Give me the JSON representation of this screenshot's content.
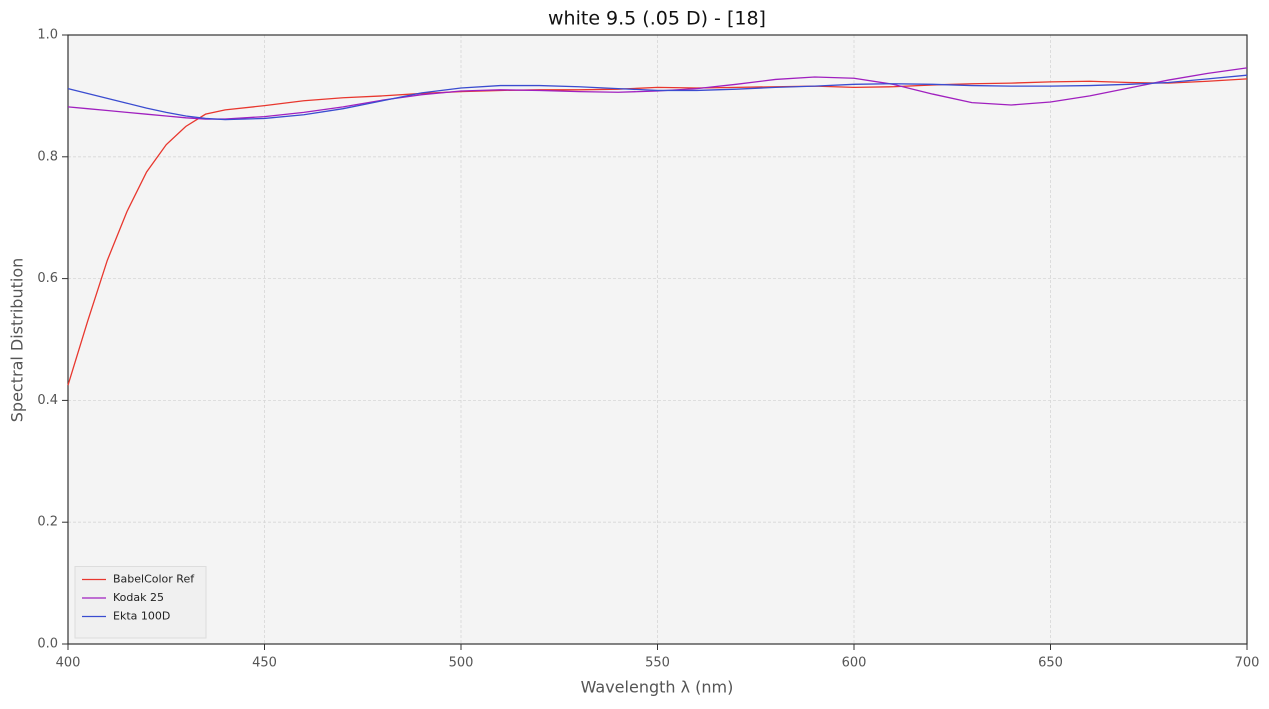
{
  "chart_data": {
    "type": "line",
    "title": "white 9.5 (.05 D) - [18]",
    "xlabel": "Wavelength λ (nm)",
    "ylabel": "Spectral Distribution",
    "x": [
      400,
      405,
      410,
      415,
      420,
      425,
      430,
      435,
      440,
      450,
      460,
      470,
      480,
      490,
      500,
      510,
      520,
      530,
      540,
      550,
      560,
      570,
      580,
      590,
      600,
      610,
      620,
      630,
      640,
      650,
      660,
      670,
      680,
      690,
      700
    ],
    "series": [
      {
        "name": "BabelColor Ref",
        "color": "#e8372e",
        "values": [
          0.425,
          0.53,
          0.63,
          0.71,
          0.775,
          0.82,
          0.85,
          0.87,
          0.877,
          0.884,
          0.892,
          0.897,
          0.9,
          0.904,
          0.907,
          0.909,
          0.91,
          0.91,
          0.911,
          0.914,
          0.913,
          0.914,
          0.915,
          0.916,
          0.914,
          0.915,
          0.918,
          0.92,
          0.921,
          0.923,
          0.924,
          0.922,
          0.921,
          0.924,
          0.928
        ]
      },
      {
        "name": "Kodak 25",
        "color": "#a020bf",
        "values": [
          0.882,
          0.879,
          0.876,
          0.873,
          0.87,
          0.867,
          0.864,
          0.862,
          0.862,
          0.866,
          0.873,
          0.882,
          0.893,
          0.902,
          0.908,
          0.91,
          0.909,
          0.907,
          0.906,
          0.908,
          0.912,
          0.919,
          0.927,
          0.931,
          0.929,
          0.919,
          0.903,
          0.889,
          0.885,
          0.89,
          0.9,
          0.913,
          0.926,
          0.937,
          0.946
        ]
      },
      {
        "name": "Ekta 100D",
        "color": "#3a4cd0",
        "values": [
          0.912,
          0.904,
          0.896,
          0.888,
          0.88,
          0.873,
          0.867,
          0.863,
          0.861,
          0.863,
          0.869,
          0.879,
          0.892,
          0.905,
          0.913,
          0.917,
          0.917,
          0.915,
          0.912,
          0.909,
          0.909,
          0.911,
          0.914,
          0.916,
          0.919,
          0.92,
          0.919,
          0.917,
          0.916,
          0.916,
          0.917,
          0.919,
          0.922,
          0.928,
          0.934
        ]
      }
    ],
    "xlim": [
      400,
      700
    ],
    "xticks": [
      400,
      450,
      500,
      550,
      600,
      650,
      700
    ],
    "ylim": [
      0,
      1
    ],
    "yticks": [
      {
        "value": 0,
        "label": "0.0"
      },
      0.2,
      0.4,
      0.6,
      0.8,
      {
        "value": 1,
        "label": "1.0"
      }
    ],
    "grid": true,
    "legend": "lower left"
  }
}
